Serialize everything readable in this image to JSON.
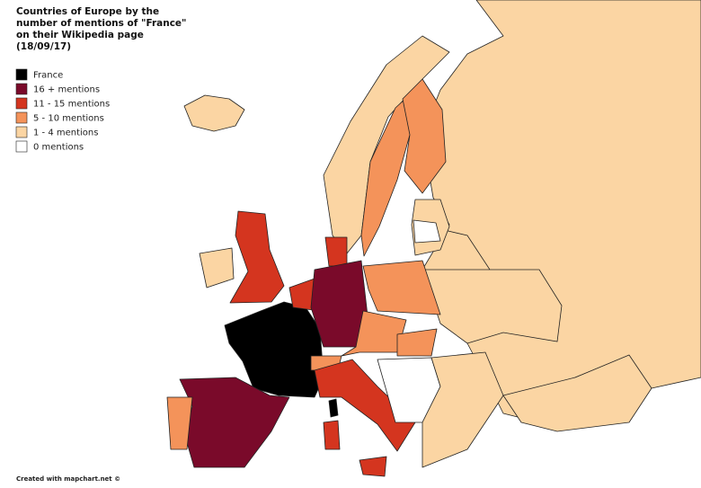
{
  "title_lines": [
    "Countries of Europe by the",
    "number of mentions of \"France\"",
    "on their Wikipedia page",
    "(18/09/17)"
  ],
  "legend": [
    {
      "label": "France",
      "color": "#000000"
    },
    {
      "label": "16 + mentions",
      "color": "#7a0a2a"
    },
    {
      "label": "11 - 15 mentions",
      "color": "#d4351f"
    },
    {
      "label": "5 - 10 mentions",
      "color": "#f4935a"
    },
    {
      "label": "1 - 4 mentions",
      "color": "#fbd5a3"
    },
    {
      "label": "0 mentions",
      "color": "#ffffff"
    }
  ],
  "credit": "Created with mapchart.net ©"
}
